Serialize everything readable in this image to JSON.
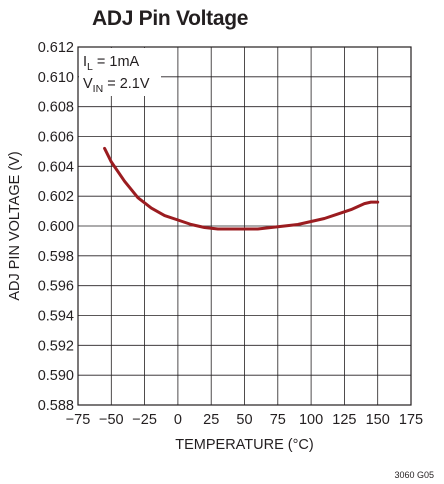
{
  "chart_data": {
    "type": "line",
    "title": "ADJ Pin Voltage",
    "xlabel": "TEMPERATURE (°C)",
    "ylabel": "ADJ PIN VOLTAGE (V)",
    "xlim": [
      -75,
      175
    ],
    "ylim": [
      0.588,
      0.612
    ],
    "x_ticks": [
      -75,
      -50,
      -25,
      0,
      25,
      50,
      75,
      100,
      125,
      150,
      175
    ],
    "x_tick_labels": [
      "−75",
      "−50",
      "−25",
      "0",
      "25",
      "50",
      "75",
      "100",
      "125",
      "150",
      "175"
    ],
    "y_ticks": [
      0.588,
      0.59,
      0.592,
      0.594,
      0.596,
      0.598,
      0.6,
      0.602,
      0.604,
      0.606,
      0.608,
      0.61,
      0.612
    ],
    "y_tick_labels": [
      "0.588",
      "0.590",
      "0.592",
      "0.594",
      "0.596",
      "0.598",
      "0.600",
      "0.602",
      "0.604",
      "0.606",
      "0.608",
      "0.610",
      "0.612"
    ],
    "grid": true,
    "annotations": [
      {
        "base": "I",
        "sub": "L",
        "rest": " = 1mA"
      },
      {
        "base": "V",
        "sub": "IN",
        "rest": " = 2.1V"
      }
    ],
    "series": [
      {
        "color": "#9b1c20",
        "x": [
          -55,
          -50,
          -40,
          -30,
          -20,
          -10,
          0,
          10,
          20,
          30,
          40,
          50,
          60,
          70,
          80,
          90,
          100,
          110,
          120,
          130,
          140,
          145,
          150
        ],
        "y": [
          0.6052,
          0.6043,
          0.603,
          0.6019,
          0.6012,
          0.6007,
          0.6004,
          0.6001,
          0.5999,
          0.5998,
          0.5998,
          0.5998,
          0.5998,
          0.5999,
          0.6,
          0.6001,
          0.6003,
          0.6005,
          0.6008,
          0.6011,
          0.6015,
          0.6016,
          0.6016
        ]
      }
    ]
  },
  "figure_code": "3060 G05"
}
